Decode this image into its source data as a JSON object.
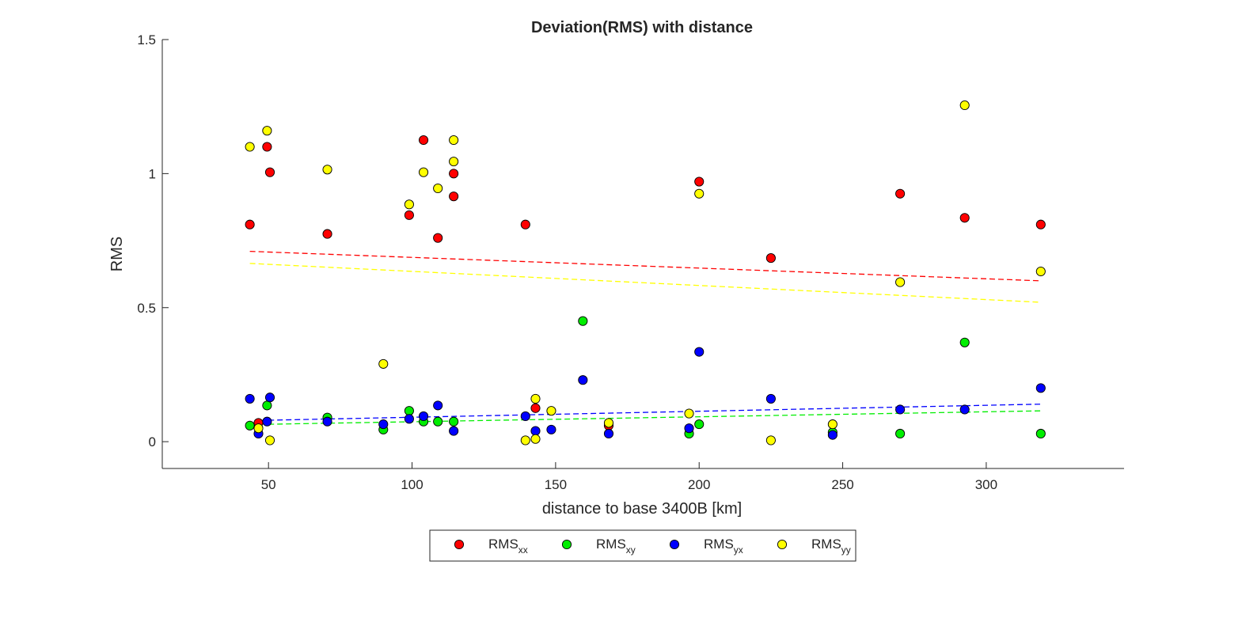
{
  "chart_data": {
    "type": "scatter",
    "title": "Deviation(RMS) with distance",
    "xlabel": "distance to base 3400B [km]",
    "ylabel": "RMS",
    "xlim": [
      13,
      348
    ],
    "ylim": [
      -0.1,
      1.5
    ],
    "xticks": [
      50,
      100,
      150,
      200,
      250,
      300
    ],
    "xtick_labels": [
      "50",
      "100",
      "150",
      "200",
      "250",
      "300"
    ],
    "yticks": [
      0,
      0.5,
      1,
      1.5
    ],
    "ytick_labels": [
      "0",
      "0.5",
      "1",
      "1.5"
    ],
    "grid": false,
    "legend_position": "bottom-center-outside",
    "series": [
      {
        "name": "RMS",
        "subscript": "xx",
        "color": "#ff0000",
        "x": [
          43.5,
          46.5,
          49.5,
          50.5,
          70.5,
          99,
          104,
          109,
          114.5,
          114.5,
          139.5,
          143,
          168.5,
          200,
          225,
          270,
          292.5,
          319
        ],
        "y": [
          0.81,
          0.07,
          1.1,
          1.005,
          0.775,
          0.845,
          1.125,
          0.76,
          1.0,
          0.915,
          0.81,
          0.125,
          0.06,
          0.97,
          0.685,
          0.925,
          0.835,
          0.81
        ],
        "trend": {
          "x": [
            43.5,
            319
          ],
          "y": [
            0.71,
            0.6
          ]
        }
      },
      {
        "name": "RMS",
        "subscript": "xy",
        "color": "#00ee00",
        "x": [
          43.5,
          49.5,
          70.5,
          90,
          99,
          104,
          109,
          114.5,
          159.5,
          196.5,
          200,
          246.5,
          270,
          292.5,
          319
        ],
        "y": [
          0.06,
          0.135,
          0.09,
          0.045,
          0.115,
          0.075,
          0.075,
          0.075,
          0.45,
          0.03,
          0.065,
          0.035,
          0.03,
          0.37,
          0.03
        ],
        "trend": {
          "x": [
            50,
            319
          ],
          "y": [
            0.065,
            0.115
          ]
        }
      },
      {
        "name": "RMS",
        "subscript": "yx",
        "color": "#0000ff",
        "x": [
          43.5,
          46.5,
          49.5,
          50.5,
          70.5,
          90,
          99,
          104,
          109,
          114.5,
          139.5,
          143,
          148.5,
          159.5,
          168.5,
          196.5,
          200,
          225,
          246.5,
          270,
          292.5,
          319
        ],
        "y": [
          0.16,
          0.03,
          0.075,
          0.165,
          0.075,
          0.065,
          0.085,
          0.095,
          0.135,
          0.04,
          0.095,
          0.04,
          0.045,
          0.23,
          0.03,
          0.05,
          0.335,
          0.16,
          0.025,
          0.12,
          0.12,
          0.2
        ],
        "trend": {
          "x": [
            50,
            319
          ],
          "y": [
            0.08,
            0.14
          ]
        }
      },
      {
        "name": "RMS",
        "subscript": "yy",
        "color": "#ffff00",
        "x": [
          43.5,
          46.5,
          49.5,
          50.5,
          70.5,
          90,
          99,
          104,
          109,
          114.5,
          114.5,
          139.5,
          143,
          143,
          148.5,
          168.5,
          196.5,
          200,
          225,
          246.5,
          270,
          292.5,
          319
        ],
        "y": [
          1.1,
          0.05,
          1.16,
          0.005,
          1.015,
          0.29,
          0.885,
          1.005,
          0.945,
          1.125,
          1.045,
          0.005,
          0.16,
          0.01,
          0.115,
          0.07,
          0.105,
          0.925,
          0.005,
          0.065,
          0.595,
          1.255,
          0.635
        ],
        "trend": {
          "x": [
            43.5,
            319
          ],
          "y": [
            0.665,
            0.52
          ]
        }
      }
    ]
  }
}
